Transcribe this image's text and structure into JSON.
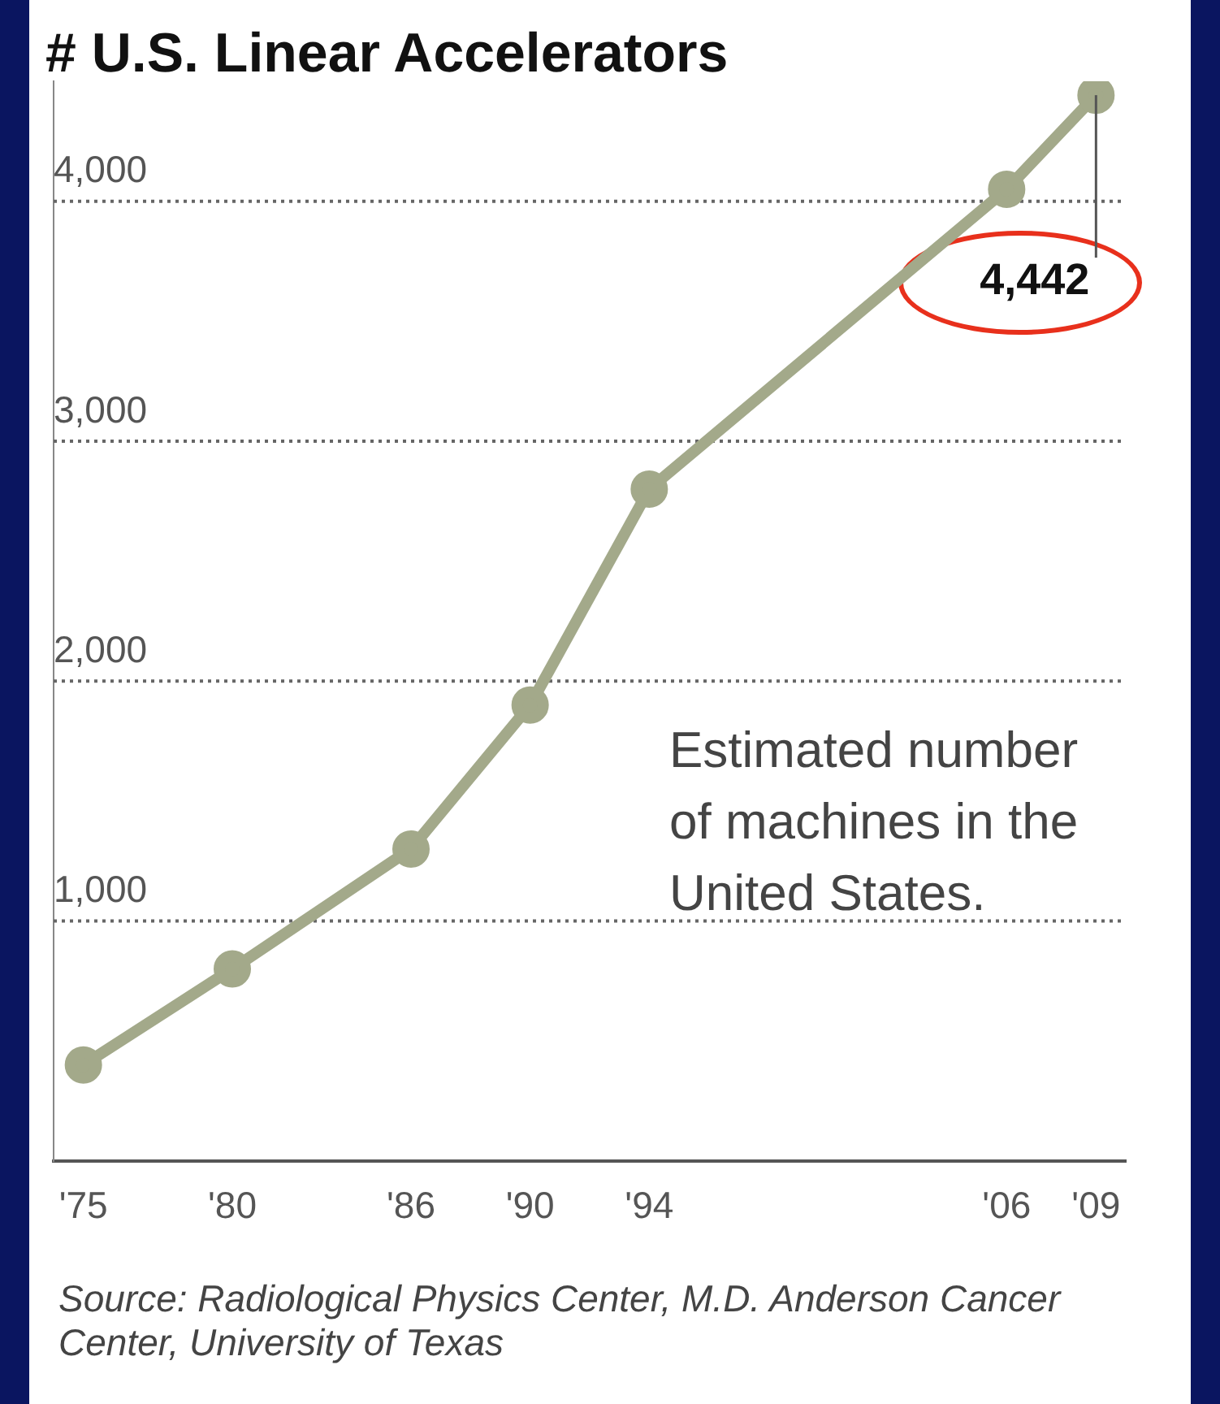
{
  "chart_data": {
    "type": "line",
    "title": "# U.S. Linear Accelerators",
    "x": [
      1975,
      1980,
      1986,
      1990,
      1994,
      2006,
      2009
    ],
    "series": [
      {
        "color": "#a3a98a",
        "values": [
          400,
          800,
          1300,
          1900,
          2800,
          4050,
          4442
        ]
      }
    ],
    "xlim": [
      1974,
      2010
    ],
    "xticks": [
      {
        "value": 1975,
        "label": "'75"
      },
      {
        "value": 1980,
        "label": "'80"
      },
      {
        "value": 1986,
        "label": "'86"
      },
      {
        "value": 1990,
        "label": "'90"
      },
      {
        "value": 1994,
        "label": "'94"
      },
      {
        "value": 2006,
        "label": "'06"
      },
      {
        "value": 2009,
        "label": "'09"
      }
    ],
    "ylim": [
      0,
      4500
    ],
    "yticks": [
      {
        "value": 1000,
        "label": "1,000"
      },
      {
        "value": 2000,
        "label": "2,000"
      },
      {
        "value": 3000,
        "label": "3,000"
      },
      {
        "value": 4000,
        "label": "4,000"
      }
    ],
    "grid": "y",
    "marker": "circle",
    "line_style": "solid",
    "legend": false,
    "annotations": [
      {
        "text": "4,442",
        "x": 2009,
        "y": 4442
      },
      "Estimated number of machines in the United States.",
      "Source: Radiological Physics Center, M.D. Anderson Cancer Center, University of Texas"
    ]
  }
}
